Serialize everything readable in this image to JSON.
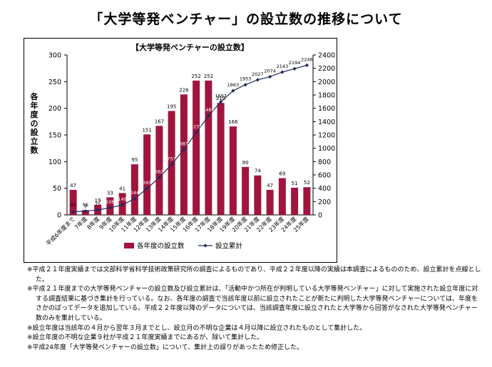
{
  "page_title": "「大学等発ベンチャー」の設立数の推移について",
  "chart_data": {
    "type": "bar+line",
    "title": "【大学等発ベンチャーの設立数】",
    "categories": [
      "平成6年度まで",
      "7年度",
      "8年度",
      "9年度",
      "10年度",
      "11年度",
      "12年度",
      "13年度",
      "14年度",
      "15年度",
      "16年度",
      "17年度",
      "18年度",
      "19年度",
      "20年度",
      "21年度",
      "22年度",
      "23年度",
      "24年度",
      "25年度"
    ],
    "series": [
      {
        "name": "各年度の設立数",
        "type": "bar",
        "axis": "left",
        "color": "#a0153e",
        "values": [
          47,
          9,
          19,
          33,
          41,
          95,
          151,
          167,
          195,
          226,
          252,
          252,
          210,
          166,
          90,
          74,
          47,
          69,
          51,
          52
        ]
      },
      {
        "name": "設立累計",
        "type": "line",
        "axis": "right",
        "color": "#1f2a5c",
        "values": [
          47,
          56,
          75,
          108,
          149,
          244,
          395,
          562,
          757,
          983,
          1235,
          1487,
          1697,
          1863,
          1953,
          2027,
          2074,
          2143,
          2194,
          2246
        ]
      }
    ],
    "ylabel_left": "各年度の設立数",
    "ylabel_right": "設立累計",
    "ylim_left": [
      0,
      300
    ],
    "yticks_left": [
      0,
      50,
      100,
      150,
      200,
      250,
      300
    ],
    "ylim_right": [
      0,
      2400
    ],
    "yticks_right": [
      0,
      200,
      400,
      600,
      800,
      1000,
      1200,
      1400,
      1600,
      1800,
      2000,
      2200,
      2400
    ],
    "grid": false,
    "legend_position": "bottom"
  },
  "notes": [
    "※平成２１年度実績までは文部科学省科学技術政策研究所の調査によるものであり、平成２２年度以降の実績は本調査によるもののため、設立累計を点線とした。",
    "※平成２１年度までの大学等発ベンチャーの設立数及び設立累計は、「活動中かつ所在が判明している大学等発ベンチャー」に対して実施された設立年度に対する調査結果に基づき集計を行っている。なお、各年度の調査で当該年度以前に設立されたことが新たに判明した大学等発ベンチャーについては、年度をさかのぼってデータを追加している。平成２２年度以降のデータについては、当該調査年度に設立されたと大学等から回答がなされた大学等発ベンチャー数のみを集計している。",
    "※設立年度は当該年の４月から翌年３月までとし、設立月の不明な企業は４月以降に設立されたものとして集計した。",
    "※設立年度の不明な企業９社が平成２１年度実績までにあるが、除いて集計した。",
    "※平成24年度「大学等発ベンチャーの設立数」について、集計上の誤りがあったため修正した。"
  ]
}
